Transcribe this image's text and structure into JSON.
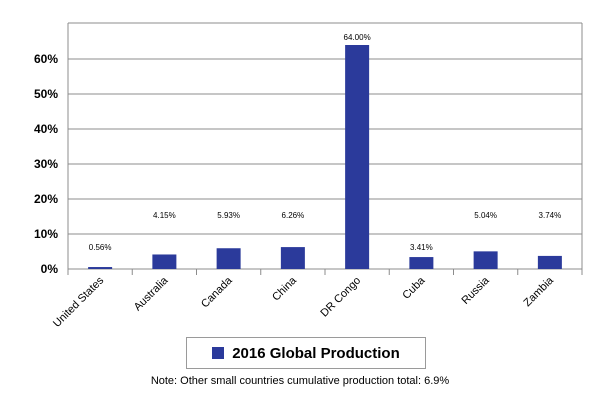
{
  "chart_data": {
    "type": "bar",
    "categories": [
      "United States",
      "Australia",
      "Canada",
      "China",
      "DR Congo",
      "Cuba",
      "Russia",
      "Zambia"
    ],
    "series": [
      {
        "name": "2016 Global Production",
        "values": [
          0.56,
          4.15,
          5.93,
          6.26,
          64.0,
          3.41,
          5.04,
          3.74
        ],
        "data_labels": [
          "0.56%",
          "4.15%",
          "5.93%",
          "6.26%",
          "64.00%",
          "3.41%",
          "5.04%",
          "3.74%"
        ]
      }
    ],
    "ylim": [
      0,
      60
    ],
    "yticks": [
      0,
      10,
      20,
      30,
      40,
      50,
      60
    ],
    "ytick_labels": [
      "0%",
      "10%",
      "20%",
      "30%",
      "40%",
      "50%",
      "60%"
    ],
    "grid": true,
    "legend_position": "bottom",
    "bar_color": "#2b3a9b",
    "grid_color": "#8c8c8c"
  },
  "note": "Note: Other small countries cumulative production total: 6.9%"
}
